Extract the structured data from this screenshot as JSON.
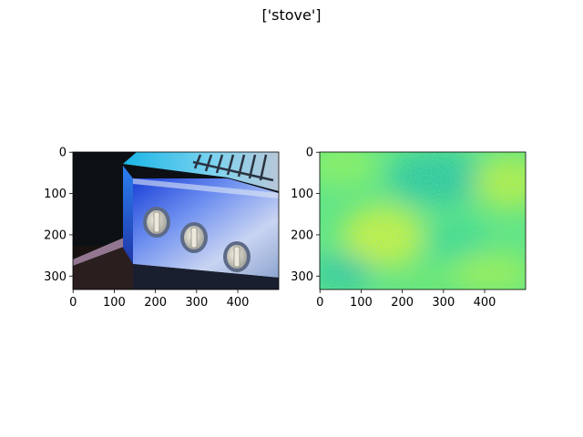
{
  "figure": {
    "title": "['stove']"
  },
  "panels": [
    {
      "name": "photo",
      "content": "stove-photo",
      "xticks": [
        "0",
        "100",
        "200",
        "300",
        "400"
      ],
      "yticks": [
        "0",
        "100",
        "200",
        "300"
      ]
    },
    {
      "name": "heatmap",
      "content": "noise-heatmap",
      "colors": [
        "#3fd98a",
        "#7df25a",
        "#2fc79a",
        "#c8f03c"
      ],
      "xticks": [
        "0",
        "100",
        "200",
        "300",
        "400"
      ],
      "yticks": [
        "0",
        "100",
        "200",
        "300"
      ]
    }
  ]
}
